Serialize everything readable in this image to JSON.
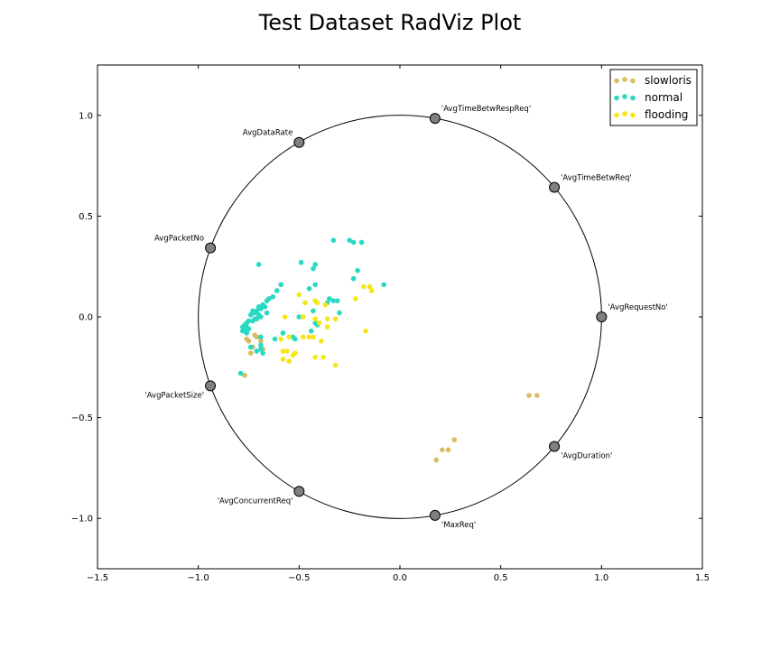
{
  "chart_data": {
    "type": "scatter",
    "title": "Test Dataset RadViz Plot",
    "xlabel": "",
    "ylabel": "",
    "xlim": [
      -1.5,
      1.5
    ],
    "ylim": [
      -1.25,
      1.25
    ],
    "x_ticks": [
      -1.5,
      -1.0,
      -0.5,
      0.0,
      0.5,
      1.0,
      1.5
    ],
    "x_tick_labels": [
      "−1.5",
      "−1.0",
      "−0.5",
      "0.0",
      "0.5",
      "1.0",
      "1.5"
    ],
    "y_ticks": [
      -1.0,
      -0.5,
      0.0,
      0.5,
      1.0
    ],
    "y_tick_labels": [
      "−1.0",
      "−0.5",
      "0.0",
      "0.5",
      "1.0"
    ],
    "grid": false,
    "legend_position": "top-right",
    "circle_radius": 1.0,
    "anchors": [
      {
        "label": "'AvgRequestNo'",
        "x": 1.0,
        "y": 0.0
      },
      {
        "label": "'AvgTimeBetwReq'",
        "x": 0.766,
        "y": 0.643
      },
      {
        "label": "'AvgTimeBetwRespReq'",
        "x": 0.174,
        "y": 0.985
      },
      {
        "label": "AvgDataRate",
        "x": -0.5,
        "y": 0.866
      },
      {
        "label": "AvgPacketNo",
        "x": -0.94,
        "y": 0.342
      },
      {
        "label": "'AvgPacketSize'",
        "x": -0.94,
        "y": -0.342
      },
      {
        "label": "'AvgConcurrentReq'",
        "x": -0.5,
        "y": -0.866
      },
      {
        "label": "'MaxReq'",
        "x": 0.174,
        "y": -0.985
      },
      {
        "label": "'AvgDuration'",
        "x": 0.766,
        "y": -0.643
      }
    ],
    "series": [
      {
        "name": "slowloris",
        "color": "#d9bc62",
        "points": [
          [
            -0.76,
            -0.11
          ],
          [
            -0.75,
            -0.12
          ],
          [
            -0.77,
            -0.29
          ],
          [
            -0.74,
            -0.18
          ],
          [
            -0.71,
            -0.1
          ],
          [
            -0.69,
            -0.12
          ],
          [
            -0.73,
            -0.15
          ],
          [
            -0.68,
            -0.16
          ],
          [
            -0.72,
            -0.09
          ],
          [
            0.64,
            -0.39
          ],
          [
            0.68,
            -0.39
          ],
          [
            0.27,
            -0.61
          ],
          [
            0.24,
            -0.66
          ],
          [
            0.21,
            -0.66
          ],
          [
            0.18,
            -0.71
          ]
        ]
      },
      {
        "name": "normal",
        "color": "#2ad9c2",
        "points": [
          [
            -0.33,
            0.38
          ],
          [
            -0.25,
            0.38
          ],
          [
            -0.23,
            0.37
          ],
          [
            -0.19,
            0.37
          ],
          [
            -0.49,
            0.27
          ],
          [
            -0.7,
            0.26
          ],
          [
            -0.42,
            0.26
          ],
          [
            -0.43,
            0.24
          ],
          [
            -0.21,
            0.23
          ],
          [
            -0.23,
            0.19
          ],
          [
            -0.59,
            0.16
          ],
          [
            -0.42,
            0.16
          ],
          [
            -0.08,
            0.16
          ],
          [
            -0.45,
            0.14
          ],
          [
            -0.61,
            0.13
          ],
          [
            -0.63,
            0.1
          ],
          [
            -0.35,
            0.09
          ],
          [
            -0.33,
            0.08
          ],
          [
            -0.31,
            0.08
          ],
          [
            -0.36,
            0.07
          ],
          [
            -0.65,
            0.09
          ],
          [
            -0.66,
            0.08
          ],
          [
            -0.68,
            0.06
          ],
          [
            -0.67,
            0.05
          ],
          [
            -0.69,
            0.04
          ],
          [
            -0.7,
            0.05
          ],
          [
            -0.71,
            0.03
          ],
          [
            -0.72,
            0.02
          ],
          [
            -0.73,
            0.03
          ],
          [
            -0.74,
            0.01
          ],
          [
            -0.7,
            0.01
          ],
          [
            -0.66,
            0.02
          ],
          [
            -0.43,
            0.03
          ],
          [
            -0.3,
            0.02
          ],
          [
            -0.69,
            0.0
          ],
          [
            -0.71,
            -0.01
          ],
          [
            -0.72,
            -0.01
          ],
          [
            -0.73,
            -0.02
          ],
          [
            -0.75,
            -0.02
          ],
          [
            -0.76,
            -0.03
          ],
          [
            -0.77,
            -0.04
          ],
          [
            -0.78,
            -0.05
          ],
          [
            -0.76,
            -0.05
          ],
          [
            -0.77,
            -0.06
          ],
          [
            -0.75,
            -0.06
          ],
          [
            -0.78,
            -0.07
          ],
          [
            -0.76,
            -0.08
          ],
          [
            -0.5,
            0.0
          ],
          [
            -0.42,
            -0.03
          ],
          [
            -0.41,
            -0.04
          ],
          [
            -0.58,
            -0.08
          ],
          [
            -0.53,
            -0.1
          ],
          [
            -0.52,
            -0.11
          ],
          [
            -0.44,
            -0.07
          ],
          [
            -0.62,
            -0.11
          ],
          [
            -0.69,
            -0.1
          ],
          [
            -0.74,
            -0.15
          ],
          [
            -0.69,
            -0.14
          ],
          [
            -0.69,
            -0.16
          ],
          [
            -0.71,
            -0.17
          ],
          [
            -0.68,
            -0.18
          ],
          [
            -0.79,
            -0.28
          ]
        ]
      },
      {
        "name": "flooding",
        "color": "#f5e61a",
        "points": [
          [
            -0.5,
            0.11
          ],
          [
            -0.47,
            0.07
          ],
          [
            -0.42,
            0.08
          ],
          [
            -0.41,
            0.07
          ],
          [
            -0.37,
            0.06
          ],
          [
            -0.22,
            0.09
          ],
          [
            -0.18,
            0.15
          ],
          [
            -0.15,
            0.15
          ],
          [
            -0.14,
            0.13
          ],
          [
            -0.57,
            0.0
          ],
          [
            -0.48,
            0.0
          ],
          [
            -0.42,
            -0.01
          ],
          [
            -0.36,
            -0.01
          ],
          [
            -0.32,
            -0.01
          ],
          [
            -0.4,
            -0.03
          ],
          [
            -0.36,
            -0.05
          ],
          [
            -0.17,
            -0.07
          ],
          [
            -0.59,
            -0.11
          ],
          [
            -0.55,
            -0.1
          ],
          [
            -0.48,
            -0.1
          ],
          [
            -0.45,
            -0.1
          ],
          [
            -0.43,
            -0.1
          ],
          [
            -0.39,
            -0.12
          ],
          [
            -0.58,
            -0.17
          ],
          [
            -0.56,
            -0.17
          ],
          [
            -0.52,
            -0.18
          ],
          [
            -0.53,
            -0.19
          ],
          [
            -0.58,
            -0.21
          ],
          [
            -0.55,
            -0.22
          ],
          [
            -0.42,
            -0.2
          ],
          [
            -0.38,
            -0.2
          ],
          [
            -0.32,
            -0.24
          ]
        ]
      }
    ]
  }
}
